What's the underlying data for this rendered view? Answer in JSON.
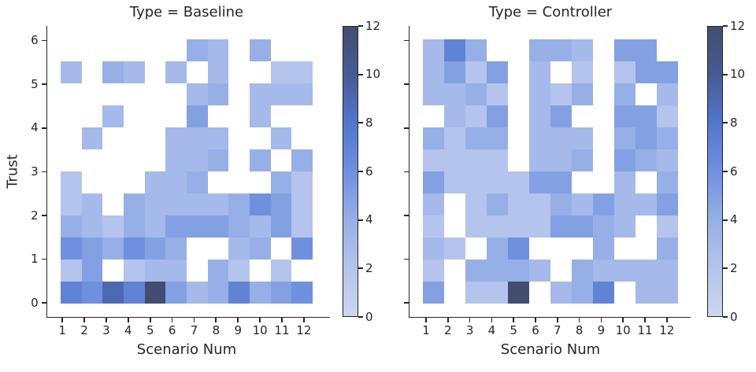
{
  "chart_data": {
    "type": "heatmap",
    "description": "Two-facet 2D histogram (seaborn-style) of Trust vs Scenario Num with shared count colorbars. Cell values are counts estimated from color intensity; 0 means empty/white cell. Matrix rows are listed top-to-bottom (Trust 5.5-6.0 first, 0.0-0.5 last); columns are Scenario Num 1-12.",
    "facets": [
      {
        "title": "Type = Baseline",
        "matrix": [
          [
            0,
            0,
            0,
            0,
            0,
            0,
            4,
            3,
            0,
            4,
            0,
            0
          ],
          [
            3,
            0,
            4,
            3,
            0,
            3,
            0,
            3,
            0,
            0,
            2,
            2
          ],
          [
            0,
            0,
            0,
            0,
            0,
            0,
            3,
            4,
            0,
            3,
            3,
            3
          ],
          [
            0,
            0,
            3,
            0,
            0,
            0,
            5,
            0,
            0,
            3,
            0,
            0
          ],
          [
            0,
            3,
            0,
            0,
            0,
            3,
            3,
            3,
            0,
            0,
            3,
            0
          ],
          [
            0,
            0,
            0,
            0,
            0,
            3,
            3,
            4,
            0,
            4,
            0,
            4
          ],
          [
            2,
            0,
            0,
            0,
            3,
            3,
            4,
            0,
            0,
            0,
            4,
            2
          ],
          [
            2,
            3,
            0,
            4,
            3,
            3,
            3,
            3,
            4,
            6,
            5,
            2
          ],
          [
            4,
            3,
            2,
            4,
            3,
            5,
            5,
            5,
            4,
            3,
            5,
            2
          ],
          [
            6,
            5,
            4,
            6,
            5,
            4,
            0,
            0,
            3,
            4,
            0,
            6
          ],
          [
            2,
            5,
            0,
            2,
            3,
            3,
            0,
            4,
            2,
            0,
            2,
            0
          ],
          [
            7,
            6,
            9,
            7,
            12,
            5,
            3,
            4,
            7,
            4,
            5,
            6
          ]
        ]
      },
      {
        "title": "Type = Controller",
        "matrix": [
          [
            3,
            7,
            4,
            0,
            0,
            4,
            4,
            3,
            0,
            5,
            5,
            0
          ],
          [
            3,
            5,
            2,
            5,
            0,
            3,
            0,
            2,
            0,
            2,
            5,
            5
          ],
          [
            3,
            3,
            4,
            2,
            0,
            3,
            2,
            4,
            0,
            4,
            0,
            3
          ],
          [
            0,
            3,
            2,
            5,
            0,
            3,
            5,
            0,
            0,
            5,
            5,
            2
          ],
          [
            4,
            2,
            4,
            4,
            0,
            3,
            3,
            3,
            0,
            4,
            5,
            4
          ],
          [
            2,
            2,
            2,
            2,
            0,
            3,
            3,
            4,
            0,
            5,
            4,
            3
          ],
          [
            5,
            2,
            2,
            2,
            2,
            5,
            5,
            0,
            0,
            3,
            0,
            4
          ],
          [
            3,
            0,
            2,
            4,
            2,
            2,
            4,
            3,
            5,
            3,
            3,
            5
          ],
          [
            2,
            0,
            2,
            2,
            2,
            2,
            5,
            5,
            4,
            3,
            0,
            2
          ],
          [
            3,
            2,
            0,
            4,
            6,
            0,
            0,
            0,
            4,
            0,
            0,
            4
          ],
          [
            2,
            0,
            4,
            4,
            4,
            3,
            0,
            4,
            3,
            3,
            3,
            3
          ],
          [
            5,
            0,
            2,
            2,
            12,
            0,
            3,
            4,
            7,
            0,
            3,
            3
          ]
        ]
      }
    ],
    "x": {
      "label": "Scenario Num",
      "ticks": [
        1,
        2,
        3,
        4,
        5,
        6,
        7,
        8,
        9,
        10,
        11,
        12
      ]
    },
    "y": {
      "label": "Trust",
      "ticks": [
        0,
        1,
        2,
        3,
        4,
        5,
        6
      ],
      "bin_width": 0.5,
      "range": [
        0,
        6
      ],
      "rows_top_to_bottom": [
        "5.5-6.0",
        "5.0-5.5",
        "4.5-5.0",
        "4.0-4.5",
        "3.5-4.0",
        "3.0-3.5",
        "2.5-3.0",
        "2.0-2.5",
        "1.5-2.0",
        "1.0-1.5",
        "0.5-1.0",
        "0.0-0.5"
      ]
    },
    "colorbar": {
      "min": 0,
      "max": 12,
      "ticks": [
        0,
        2,
        4,
        6,
        8,
        10,
        12
      ],
      "gradient_stops": [
        [
          0,
          "#cdd6f0"
        ],
        [
          2,
          "#b4c4ed"
        ],
        [
          4,
          "#96afe7"
        ],
        [
          6,
          "#6f90de"
        ],
        [
          8,
          "#5276cd"
        ],
        [
          10,
          "#475b93"
        ],
        [
          12,
          "#424d70"
        ]
      ],
      "empty_color": "#ffffff"
    },
    "style": {
      "text_color": "#262626",
      "axis_color": "#262626",
      "background": "#ffffff"
    }
  }
}
